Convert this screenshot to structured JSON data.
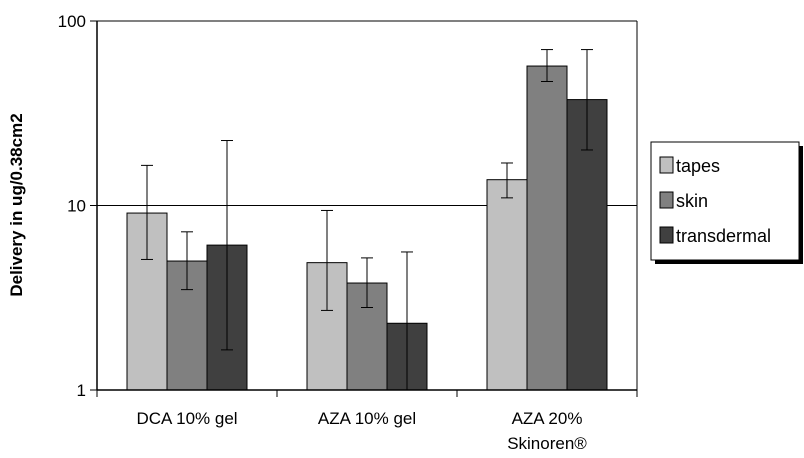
{
  "chart_data": {
    "type": "bar",
    "yscale": "log",
    "ylim": [
      1,
      100
    ],
    "yticks": [
      1,
      10,
      100
    ],
    "ytick_labels": [
      "1",
      "10",
      "100"
    ],
    "ylabel": "Delivery in ug/0.38cm2",
    "xlabel": "",
    "title": "",
    "grid": "horizontal major",
    "legend_position": "right",
    "categories": [
      {
        "line1": "DCA 10% gel",
        "line2": ""
      },
      {
        "line1": "AZA 10% gel",
        "line2": ""
      },
      {
        "line1": "AZA 20%",
        "line2": "Skinoren®"
      }
    ],
    "series": [
      {
        "name": "tapes",
        "color": "#c0c0c0",
        "values": [
          9.1,
          4.9,
          13.8
        ],
        "err_low": [
          5.1,
          2.7,
          11.0
        ],
        "err_high": [
          16.5,
          9.4,
          17.0
        ]
      },
      {
        "name": "skin",
        "color": "#808080",
        "values": [
          5.0,
          3.8,
          57.0
        ],
        "err_low": [
          3.5,
          2.8,
          47.0
        ],
        "err_high": [
          7.2,
          5.2,
          70.0
        ]
      },
      {
        "name": "transdermal",
        "color": "#404040",
        "values": [
          6.1,
          2.3,
          37.5
        ],
        "err_low": [
          1.65,
          1.0,
          20.0
        ],
        "err_high": [
          22.5,
          5.6,
          70.0
        ]
      }
    ]
  }
}
